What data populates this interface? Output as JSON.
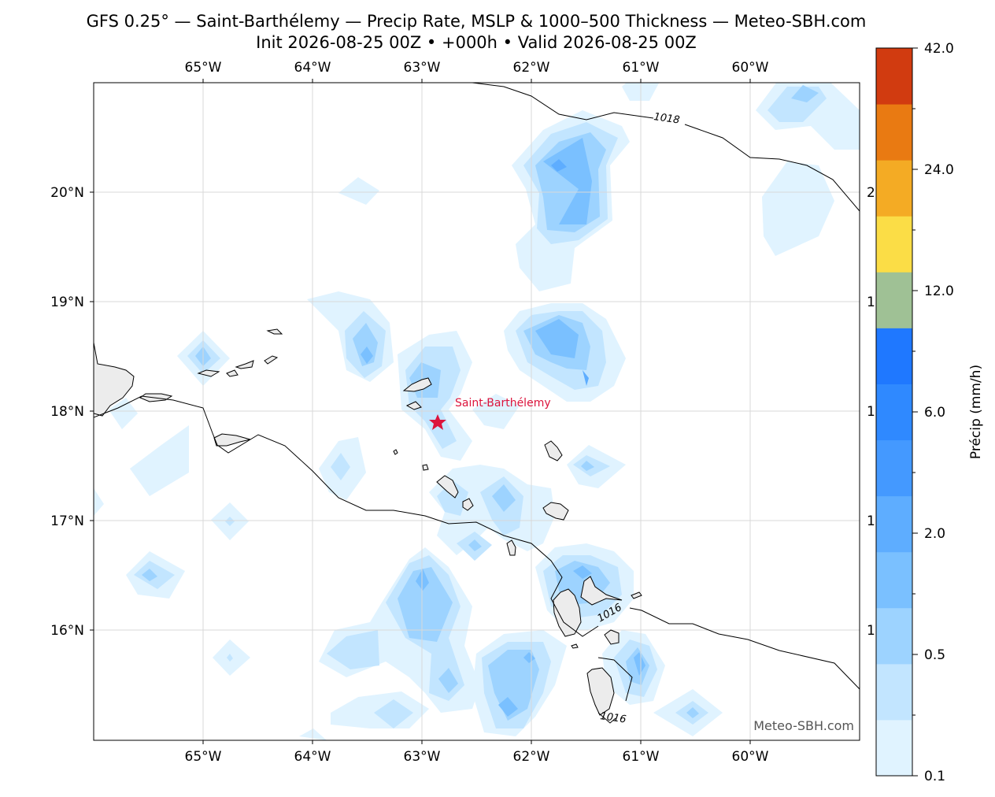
{
  "header": {
    "title": "GFS 0.25° — Saint-Barthélemy — Precip Rate, MSLP & 1000–500 Thickness — Meteo-SBH.com",
    "subtitle": "Init 2026-08-25 00Z • +000h • Valid 2026-08-25 00Z"
  },
  "map": {
    "lon_ticks": [
      "65°W",
      "64°W",
      "63°W",
      "62°W",
      "61°W",
      "60°W"
    ],
    "lat_ticks": [
      "20°N",
      "19°N",
      "18°N",
      "17°N",
      "16°N"
    ],
    "right_tick_fragments": [
      "2",
      "1",
      "1",
      "1",
      "1"
    ],
    "isobar_labels": [
      "1018",
      "1016",
      "1016"
    ],
    "marker_label": "Saint-Barthélemy",
    "marker_color": "#dc143c",
    "watermark": "Meteo-SBH.com",
    "land_color": "#ececec"
  },
  "colorbar": {
    "label": "Précip (mm/h)",
    "ticks": [
      "42.0",
      "24.0",
      "12.0",
      "6.0",
      "2.0",
      "0.5",
      "0.1"
    ],
    "colors": [
      "#e0f3ff",
      "#c2e5ff",
      "#9dd3ff",
      "#7ac0ff",
      "#5eadff",
      "#4499ff",
      "#2f89ff",
      "#1f78ff",
      "#9fc195",
      "#fbdd46",
      "#f4ab24",
      "#e97a12",
      "#d13b10"
    ]
  }
}
